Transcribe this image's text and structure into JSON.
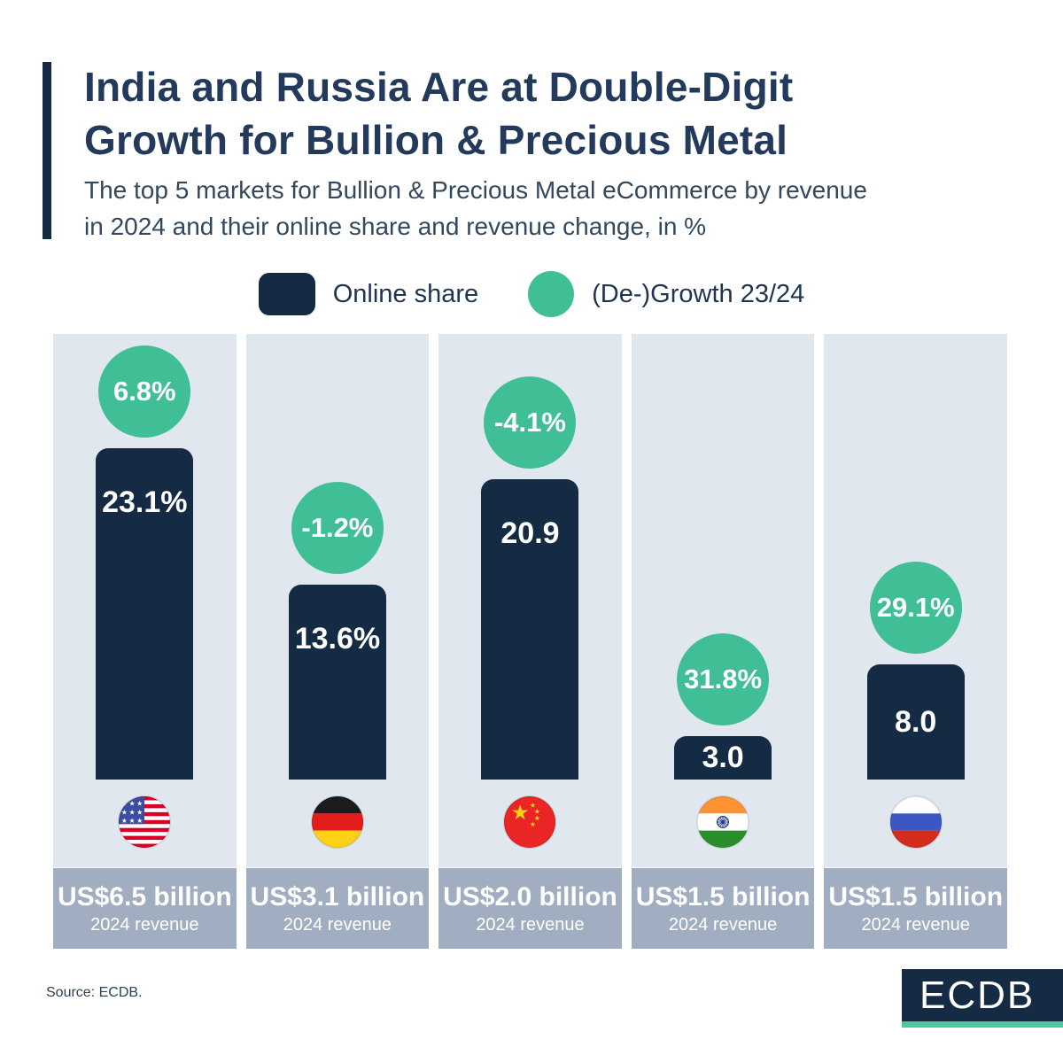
{
  "page": {
    "title_line1": "India and Russia Are at Double-Digit",
    "title_line2": "Growth for Bullion & Precious Metal",
    "subtitle_line1": "The top 5 markets for Bullion & Precious Metal eCommerce by revenue",
    "subtitle_line2": "in 2024 and their online share and revenue change, in %",
    "source": "Source: ECDB.",
    "logo_text": "ECDB"
  },
  "legend": {
    "online_share_label": "Online share",
    "growth_label": "(De-)Growth 23/24"
  },
  "colors": {
    "navy": "#142B43",
    "green": "#40BE95",
    "column_background": "#E1E7EE",
    "footer_background": "#A1AEC1",
    "title_text": "#233A5C",
    "logo_underline": "#52C6A2"
  },
  "chart_data": {
    "type": "bar",
    "title": "India and Russia Are at Double-Digit Growth for Bullion & Precious Metal",
    "subtitle": "The top 5 markets for Bullion & Precious Metal eCommerce by revenue in 2024 and their online share and revenue change, in %",
    "categories": [
      "United States",
      "Germany",
      "China",
      "India",
      "Russia"
    ],
    "series": [
      {
        "name": "Online share",
        "unit": "%",
        "values": [
          23.1,
          13.6,
          20.9,
          3.0,
          8.0
        ]
      },
      {
        "name": "(De-)Growth 23/24",
        "unit": "%",
        "values": [
          6.8,
          -1.2,
          -4.1,
          31.8,
          29.1
        ]
      }
    ],
    "legend_position": "top",
    "grid": false,
    "markets": [
      {
        "country": "United States",
        "growth_label": "6.8%",
        "share_label": "23.1%",
        "share_value": 23.1,
        "revenue": "US$6.5 billion",
        "revenue_caption": "2024 revenue"
      },
      {
        "country": "Germany",
        "growth_label": "-1.2%",
        "share_label": "13.6%",
        "share_value": 13.6,
        "revenue": "US$3.1 billion",
        "revenue_caption": "2024 revenue"
      },
      {
        "country": "China",
        "growth_label": "-4.1%",
        "share_label": "20.9",
        "share_value": 20.9,
        "revenue": "US$2.0 billion",
        "revenue_caption": "2024 revenue"
      },
      {
        "country": "India",
        "growth_label": "31.8%",
        "share_label": "3.0",
        "share_value": 3.0,
        "revenue": "US$1.5 billion",
        "revenue_caption": "2024 revenue"
      },
      {
        "country": "Russia",
        "growth_label": "29.1%",
        "share_label": "8.0",
        "share_value": 8.0,
        "revenue": "US$1.5 billion",
        "revenue_caption": "2024 revenue"
      }
    ]
  }
}
